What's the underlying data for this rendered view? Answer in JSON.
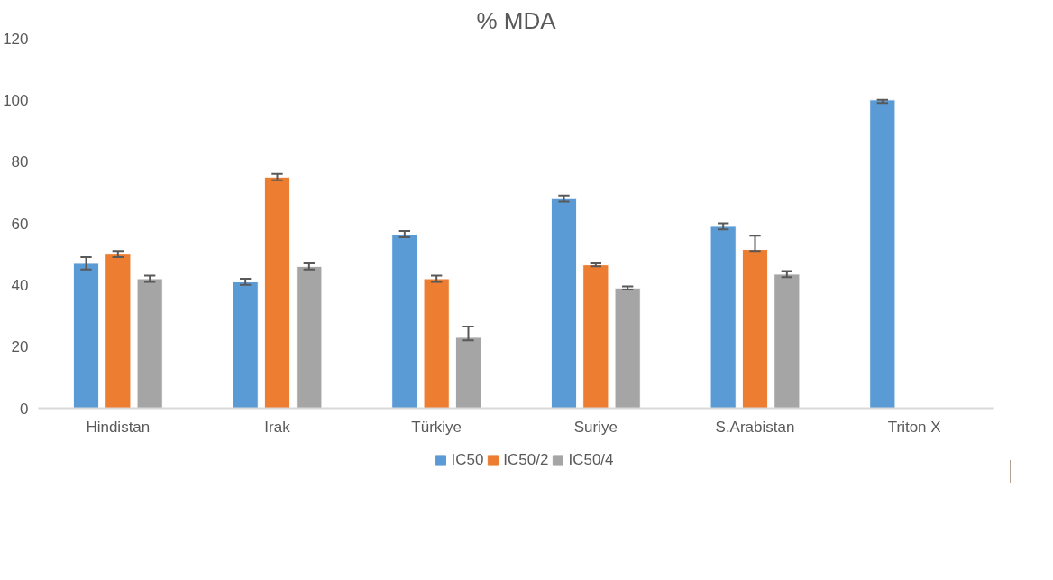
{
  "chart_data": {
    "type": "bar",
    "title": "% MDA",
    "categories": [
      "Hindistan",
      "Irak",
      "Türkiye",
      "Suriye",
      "S.Arabistan",
      "Triton X"
    ],
    "series": [
      {
        "name": "IC50",
        "color": "#5b9bd5",
        "values": [
          47,
          41,
          56.5,
          68,
          59,
          100
        ],
        "errors": [
          2,
          1,
          1,
          1,
          1,
          [
            99,
            100
          ]
        ]
      },
      {
        "name": "IC50/2",
        "color": "#ed7d31",
        "values": [
          50,
          75,
          42,
          46.5,
          51.5,
          null
        ],
        "errors": [
          1,
          1,
          1,
          0.5,
          [
            51,
            56
          ],
          null
        ]
      },
      {
        "name": "IC50/4",
        "color": "#a5a5a5",
        "values": [
          42,
          46,
          23,
          39,
          43.5,
          null
        ],
        "errors": [
          1,
          1,
          [
            22,
            26.5
          ],
          0.5,
          1,
          null
        ]
      }
    ],
    "ylim": [
      0,
      120
    ],
    "yticks": [
      0,
      20,
      40,
      60,
      80,
      100,
      120
    ],
    "grid": false,
    "legend": "bottom"
  }
}
